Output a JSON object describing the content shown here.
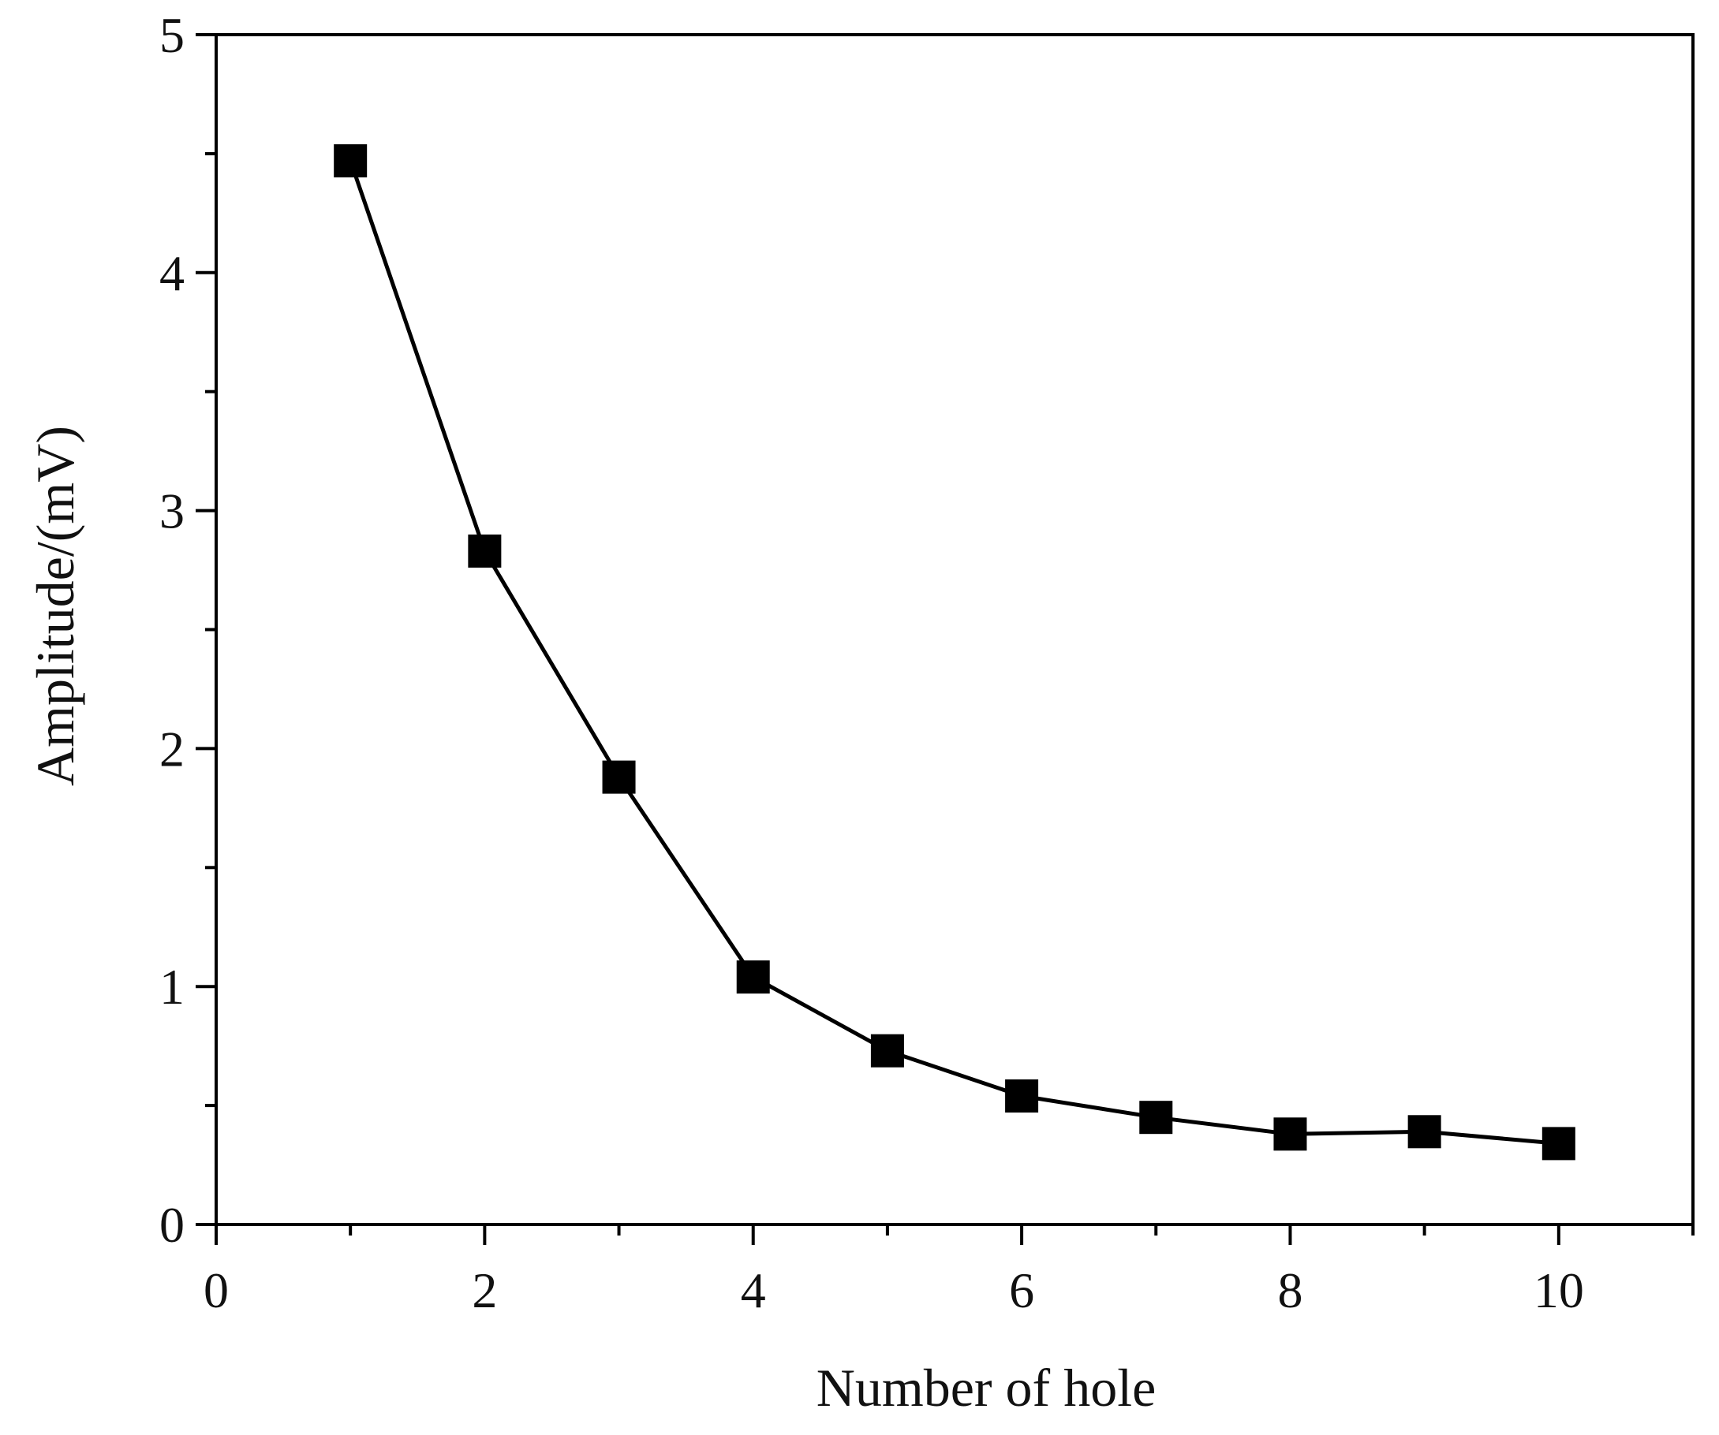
{
  "chart_data": {
    "type": "line",
    "title": "",
    "xlabel": "Number of hole",
    "ylabel": "Amplitude/(mV)",
    "xlim": [
      0,
      11
    ],
    "ylim": [
      0,
      5
    ],
    "x_ticks": [
      0,
      2,
      4,
      6,
      8,
      10
    ],
    "x_tick_labels": [
      "0",
      "2",
      "4",
      "6",
      "8",
      "10"
    ],
    "x_minor_ticks": [
      1,
      3,
      5,
      7,
      9,
      11
    ],
    "y_ticks": [
      0,
      1,
      2,
      3,
      4,
      5
    ],
    "y_tick_labels": [
      "0",
      "1",
      "2",
      "3",
      "4",
      "5"
    ],
    "y_minor_ticks": [
      0.5,
      1.5,
      2.5,
      3.5,
      4.5
    ],
    "grid": false,
    "legend": "none",
    "series": [
      {
        "marker": "square",
        "color": "#000000",
        "x": [
          1,
          2,
          3,
          4,
          5,
          6,
          7,
          8,
          9,
          10
        ],
        "y": [
          4.47,
          2.83,
          1.88,
          1.04,
          0.73,
          0.54,
          0.45,
          0.38,
          0.39,
          0.34
        ]
      }
    ]
  }
}
